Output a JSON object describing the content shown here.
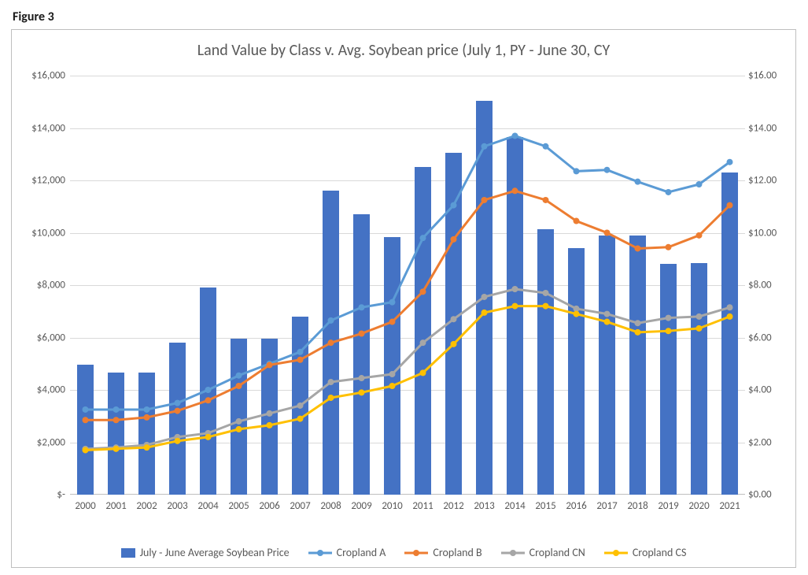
{
  "figure_label": "Figure 3",
  "chart": {
    "type": "bar+line-dual-axis",
    "title": "Land Value by Class v. Avg. Soybean price (July 1, PY - June 30, CY",
    "title_fontsize": 20,
    "title_color": "#595959",
    "years": [
      "2000",
      "2001",
      "2002",
      "2003",
      "2004",
      "2005",
      "2006",
      "2007",
      "2008",
      "2009",
      "2010",
      "2011",
      "2012",
      "2013",
      "2014",
      "2015",
      "2016",
      "2017",
      "2018",
      "2019",
      "2020",
      "2021"
    ],
    "left_axis": {
      "min": 0,
      "max": 16000,
      "step": 2000,
      "tick_labels": [
        "$-",
        "$2,000",
        "$4,000",
        "$6,000",
        "$8,000",
        "$10,000",
        "$12,000",
        "$14,000",
        "$16,000"
      ],
      "label_color": "#595959",
      "label_fontsize": 13
    },
    "right_axis": {
      "min": 0.0,
      "max": 16.0,
      "step": 2.0,
      "tick_labels": [
        "$0.00",
        "$2.00",
        "$4.00",
        "$6.00",
        "$8.00",
        "$10.00",
        "$12.00",
        "$14.00",
        "$16.00"
      ],
      "label_color": "#595959",
      "label_fontsize": 13
    },
    "grid_color": "#d9d9d9",
    "background_color": "#ffffff",
    "border_color": "#bfbfbf",
    "bars": {
      "name": "July - June Average Soybean Price",
      "axis": "right",
      "color": "#4472c4",
      "width_frac": 0.55,
      "values": [
        4.95,
        4.65,
        4.65,
        5.8,
        7.9,
        5.95,
        5.95,
        6.8,
        11.6,
        10.7,
        9.85,
        12.5,
        13.05,
        15.05,
        13.65,
        10.15,
        9.4,
        9.9,
        9.9,
        8.8,
        8.85,
        12.3
      ]
    },
    "lines": [
      {
        "name": "Cropland A",
        "axis": "left",
        "color": "#5b9bd5",
        "line_width": 3,
        "marker_radius": 4,
        "values": [
          3250,
          3250,
          3250,
          3500,
          4000,
          4550,
          5000,
          5450,
          6650,
          7150,
          7350,
          9800,
          11050,
          13300,
          13700,
          13300,
          12350,
          12400,
          11950,
          11550,
          11850,
          12700
        ]
      },
      {
        "name": "Cropland B",
        "axis": "left",
        "color": "#ed7d31",
        "line_width": 3,
        "marker_radius": 4,
        "values": [
          2850,
          2850,
          2950,
          3200,
          3600,
          4150,
          4950,
          5150,
          5800,
          6150,
          6600,
          7750,
          9750,
          11250,
          11600,
          11250,
          10450,
          10000,
          9400,
          9450,
          9900,
          11050
        ]
      },
      {
        "name": "Cropland CN",
        "axis": "left",
        "color": "#a6a6a6",
        "line_width": 3,
        "marker_radius": 4,
        "values": [
          1750,
          1800,
          1900,
          2200,
          2350,
          2800,
          3100,
          3400,
          4300,
          4450,
          4600,
          5800,
          6700,
          7550,
          7850,
          7700,
          7100,
          6900,
          6550,
          6750,
          6800,
          7150
        ]
      },
      {
        "name": "Cropland CS",
        "axis": "left",
        "color": "#ffc000",
        "line_width": 3,
        "marker_radius": 4,
        "values": [
          1700,
          1750,
          1800,
          2050,
          2200,
          2500,
          2650,
          2900,
          3700,
          3900,
          4150,
          4650,
          5750,
          6950,
          7200,
          7200,
          6900,
          6600,
          6200,
          6250,
          6350,
          6800
        ]
      }
    ],
    "legend_items": [
      {
        "kind": "bar",
        "label": "July - June Average Soybean Price",
        "color": "#4472c4"
      },
      {
        "kind": "line",
        "label": "Cropland A",
        "color": "#5b9bd5"
      },
      {
        "kind": "line",
        "label": "Cropland B",
        "color": "#ed7d31"
      },
      {
        "kind": "line",
        "label": "Cropland CN",
        "color": "#a6a6a6"
      },
      {
        "kind": "line",
        "label": "Cropland CS",
        "color": "#ffc000"
      }
    ]
  }
}
